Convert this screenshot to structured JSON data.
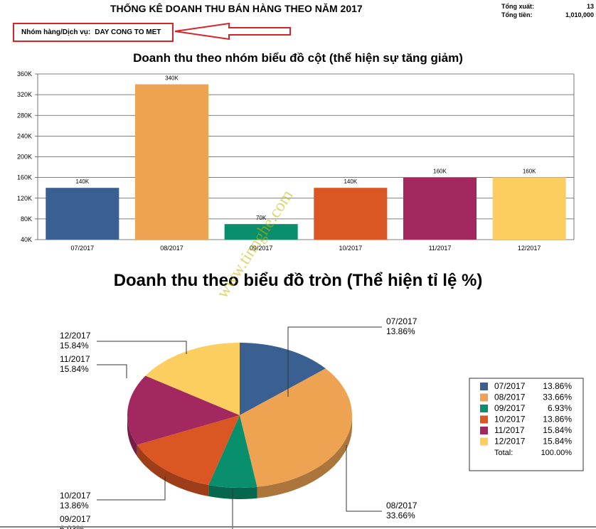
{
  "report": {
    "title": "THỐNG KÊ DOANH THU BÁN HÀNG THEO NĂM 2017",
    "total_exported_label": "Tổng xuất:",
    "total_exported_value": "13",
    "total_amount_label": "Tổng tiền:",
    "total_amount_value": "1,010,000"
  },
  "filter": {
    "label": "Nhóm hàng/Dịch vụ:",
    "value": "DAY CONG TO MET",
    "highlight_color": "#d9232b"
  },
  "watermark": "www.tinnghe.com",
  "chart_data": [
    {
      "type": "bar",
      "title": "Doanh thu theo nhóm biểu đồ cột (thể hiện sự tăng giảm)",
      "categories": [
        "07/2017",
        "08/2017",
        "09/2017",
        "10/2017",
        "11/2017",
        "12/2017"
      ],
      "values": [
        140,
        340,
        70,
        140,
        160,
        160
      ],
      "data_labels": [
        "140K",
        "340K",
        "70K",
        "140K",
        "160K",
        "160K"
      ],
      "colors": [
        "#3a5f91",
        "#eea353",
        "#0a8f6d",
        "#da5622",
        "#a2285f",
        "#fccd5f"
      ],
      "ylim": [
        40,
        360
      ],
      "yticks": [
        40,
        80,
        120,
        160,
        200,
        240,
        280,
        320,
        360
      ],
      "ytick_labels": [
        "40K",
        "80K",
        "120K",
        "160K",
        "200K",
        "240K",
        "280K",
        "320K",
        "360K"
      ],
      "grid": true,
      "xlabel": "",
      "ylabel": ""
    },
    {
      "type": "pie",
      "title": "Doanh thu theo biểu đồ tròn (Thể hiện tỉ lệ %)",
      "labels": [
        "07/2017",
        "08/2017",
        "09/2017",
        "10/2017",
        "11/2017",
        "12/2017"
      ],
      "values": [
        13.86,
        33.66,
        6.93,
        13.86,
        15.84,
        15.84
      ],
      "value_labels": [
        "13.86%",
        "33.66%",
        "6.93%",
        "13.86%",
        "15.84%",
        "15.84%"
      ],
      "colors": [
        "#3a5f91",
        "#eea353",
        "#0a8f6d",
        "#da5622",
        "#a2285f",
        "#fccd5f"
      ],
      "legend": {
        "placement": "right",
        "total_label": "Total:",
        "total_value": "100.00%"
      }
    }
  ]
}
